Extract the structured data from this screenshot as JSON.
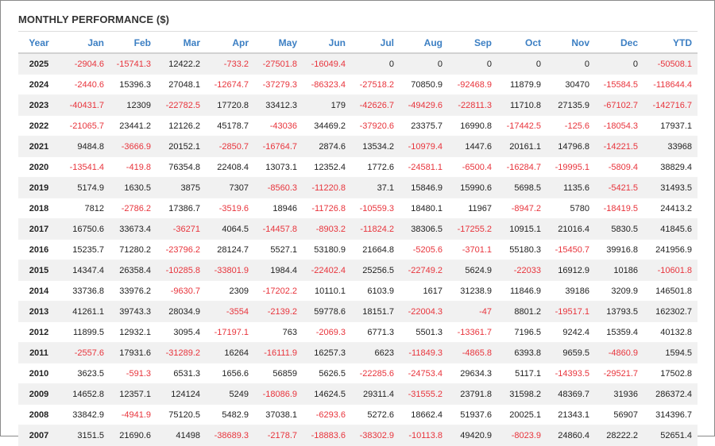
{
  "title": "MONTHLY PERFORMANCE ($)",
  "colors": {
    "header": "#3c7fc3",
    "negative": "#e8343c",
    "positive": "#222222"
  },
  "headers": [
    "Year",
    "Jan",
    "Feb",
    "Mar",
    "Apr",
    "May",
    "Jun",
    "Jul",
    "Aug",
    "Sep",
    "Oct",
    "Nov",
    "Dec",
    "YTD"
  ],
  "rows": [
    [
      "2025",
      "-2904.6",
      "-15741.3",
      "12422.2",
      "-733.2",
      "-27501.8",
      "-16049.4",
      "0",
      "0",
      "0",
      "0",
      "0",
      "0",
      "-50508.1"
    ],
    [
      "2024",
      "-2440.6",
      "15396.3",
      "27048.1",
      "-12674.7",
      "-37279.3",
      "-86323.4",
      "-27518.2",
      "70850.9",
      "-92468.9",
      "11879.9",
      "30470",
      "-15584.5",
      "-118644.4"
    ],
    [
      "2023",
      "-40431.7",
      "12309",
      "-22782.5",
      "17720.8",
      "33412.3",
      "179",
      "-42626.7",
      "-49429.6",
      "-22811.3",
      "11710.8",
      "27135.9",
      "-67102.7",
      "-142716.7"
    ],
    [
      "2022",
      "-21065.7",
      "23441.2",
      "12126.2",
      "45178.7",
      "-43036",
      "34469.2",
      "-37920.6",
      "23375.7",
      "16990.8",
      "-17442.5",
      "-125.6",
      "-18054.3",
      "17937.1"
    ],
    [
      "2021",
      "9484.8",
      "-3666.9",
      "20152.1",
      "-2850.7",
      "-16764.7",
      "2874.6",
      "13534.2",
      "-10979.4",
      "1447.6",
      "20161.1",
      "14796.8",
      "-14221.5",
      "33968"
    ],
    [
      "2020",
      "-13541.4",
      "-419.8",
      "76354.8",
      "22408.4",
      "13073.1",
      "12352.4",
      "1772.6",
      "-24581.1",
      "-6500.4",
      "-16284.7",
      "-19995.1",
      "-5809.4",
      "38829.4"
    ],
    [
      "2019",
      "5174.9",
      "1630.5",
      "3875",
      "7307",
      "-8560.3",
      "-11220.8",
      "37.1",
      "15846.9",
      "15990.6",
      "5698.5",
      "1135.6",
      "-5421.5",
      "31493.5"
    ],
    [
      "2018",
      "7812",
      "-2786.2",
      "17386.7",
      "-3519.6",
      "18946",
      "-11726.8",
      "-10559.3",
      "18480.1",
      "11967",
      "-8947.2",
      "5780",
      "-18419.5",
      "24413.2"
    ],
    [
      "2017",
      "16750.6",
      "33673.4",
      "-36271",
      "4064.5",
      "-14457.8",
      "-8903.2",
      "-11824.2",
      "38306.5",
      "-17255.2",
      "10915.1",
      "21016.4",
      "5830.5",
      "41845.6"
    ],
    [
      "2016",
      "15235.7",
      "71280.2",
      "-23796.2",
      "28124.7",
      "5527.1",
      "53180.9",
      "21664.8",
      "-5205.6",
      "-3701.1",
      "55180.3",
      "-15450.7",
      "39916.8",
      "241956.9"
    ],
    [
      "2015",
      "14347.4",
      "26358.4",
      "-10285.8",
      "-33801.9",
      "1984.4",
      "-22402.4",
      "25256.5",
      "-22749.2",
      "5624.9",
      "-22033",
      "16912.9",
      "10186",
      "-10601.8"
    ],
    [
      "2014",
      "33736.8",
      "33976.2",
      "-9630.7",
      "2309",
      "-17202.2",
      "10110.1",
      "6103.9",
      "1617",
      "31238.9",
      "11846.9",
      "39186",
      "3209.9",
      "146501.8"
    ],
    [
      "2013",
      "41261.1",
      "39743.3",
      "28034.9",
      "-3554",
      "-2139.2",
      "59778.6",
      "18151.7",
      "-22004.3",
      "-47",
      "8801.2",
      "-19517.1",
      "13793.5",
      "162302.7"
    ],
    [
      "2012",
      "11899.5",
      "12932.1",
      "3095.4",
      "-17197.1",
      "763",
      "-2069.3",
      "6771.3",
      "5501.3",
      "-13361.7",
      "7196.5",
      "9242.4",
      "15359.4",
      "40132.8"
    ],
    [
      "2011",
      "-2557.6",
      "17931.6",
      "-31289.2",
      "16264",
      "-16111.9",
      "16257.3",
      "6623",
      "-11849.3",
      "-4865.8",
      "6393.8",
      "9659.5",
      "-4860.9",
      "1594.5"
    ],
    [
      "2010",
      "3623.5",
      "-591.3",
      "6531.3",
      "1656.6",
      "56859",
      "5626.5",
      "-22285.6",
      "-24753.4",
      "29634.3",
      "5117.1",
      "-14393.5",
      "-29521.7",
      "17502.8"
    ],
    [
      "2009",
      "14652.8",
      "12357.1",
      "124124",
      "5249",
      "-18086.9",
      "14624.5",
      "29311.4",
      "-31555.2",
      "23791.8",
      "31598.2",
      "48369.7",
      "31936",
      "286372.4"
    ],
    [
      "2008",
      "33842.9",
      "-4941.9",
      "75120.5",
      "5482.9",
      "37038.1",
      "-6293.6",
      "5272.6",
      "18662.4",
      "51937.6",
      "20025.1",
      "21343.1",
      "56907",
      "314396.7"
    ],
    [
      "2007",
      "3151.5",
      "21690.6",
      "41498",
      "-38689.3",
      "-2178.7",
      "-18883.6",
      "-38302.9",
      "-10113.8",
      "49420.9",
      "-8023.9",
      "24860.4",
      "28222.2",
      "52651.4"
    ]
  ]
}
